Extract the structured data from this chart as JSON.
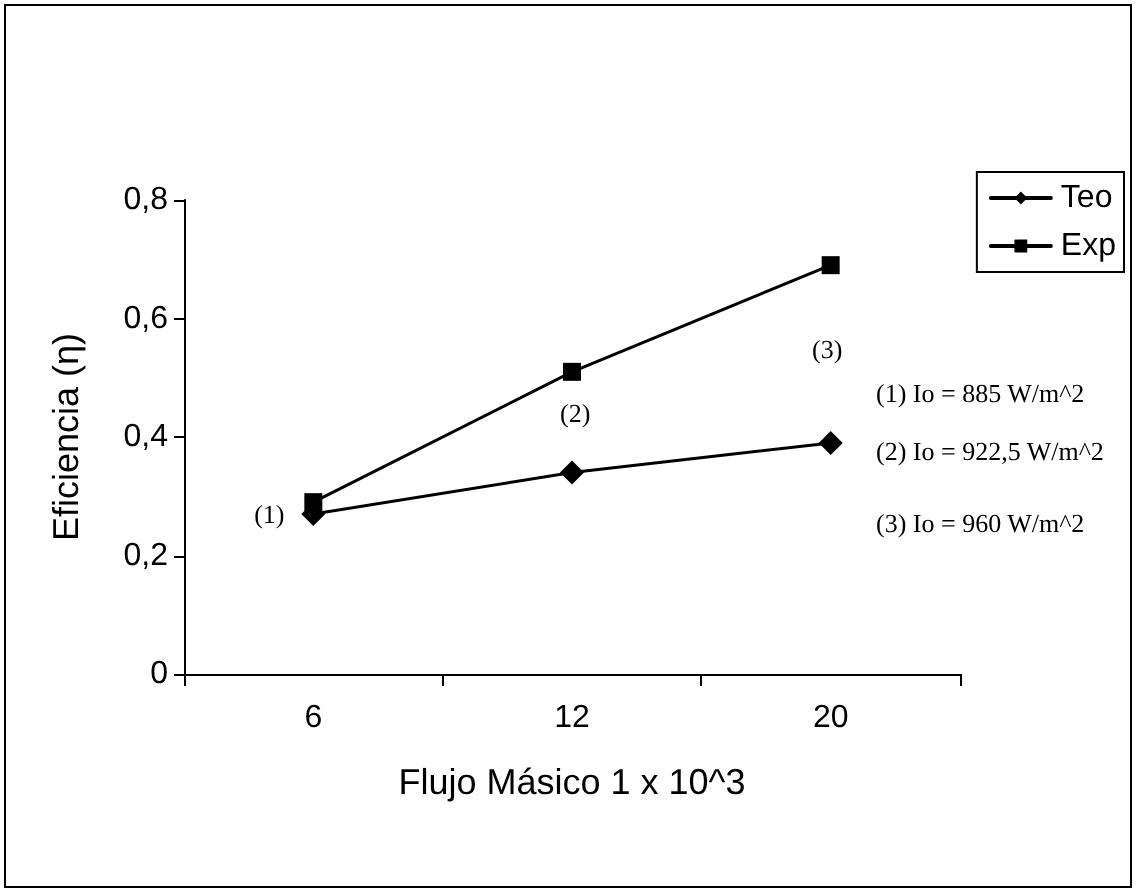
{
  "chart_data": {
    "type": "line",
    "xlabel": "Flujo Másico 1 x 10^3",
    "ylabel": "Eficiencia (η)",
    "categories": [
      "6",
      "12",
      "20"
    ],
    "series": [
      {
        "name": "Teo",
        "color": "#000000",
        "marker": "diamond",
        "values": [
          0.27,
          0.34,
          0.39
        ]
      },
      {
        "name": "Exp",
        "color": "#000000",
        "marker": "square",
        "values": [
          0.29,
          0.51,
          0.69
        ]
      }
    ],
    "ylim": [
      0,
      0.8
    ],
    "yticks": [
      {
        "value": 0,
        "label": "0"
      },
      {
        "value": 0.2,
        "label": "0,2"
      },
      {
        "value": 0.4,
        "label": "0,4"
      },
      {
        "value": 0.6,
        "label": "0,6"
      },
      {
        "value": 0.8,
        "label": "0,8"
      }
    ],
    "grid": false,
    "legend": "top right",
    "line_style": "solid",
    "annotations": [
      {
        "text": "(1)",
        "x": "6",
        "y": 0.27
      },
      "(2)",
      "(3)",
      "(1) Io = 885 W/m^2",
      "(2) Io = 922,5 W/m^2",
      "(3) Io = 960 W/m^2"
    ]
  }
}
